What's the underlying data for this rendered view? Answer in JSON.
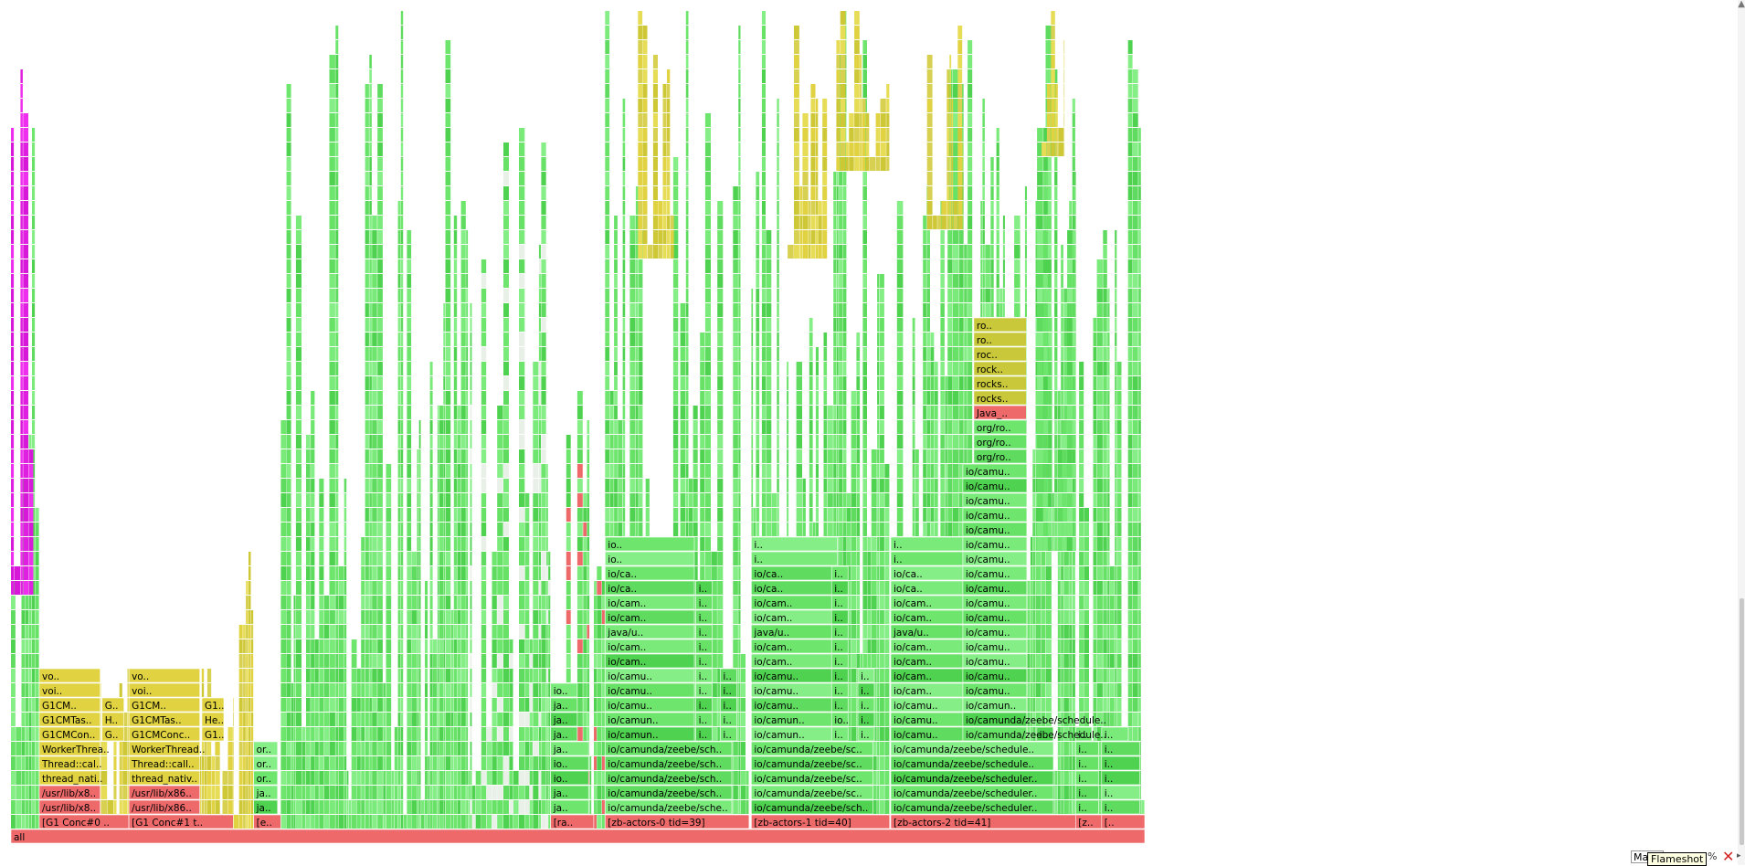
{
  "chart_data": {
    "type": "flamegraph",
    "root_label": "all",
    "x_unit": "fraction of samples",
    "colors": {
      "red": "#ee6a6a",
      "green": "#6ee66e",
      "green_mid": "#4fd24f",
      "yellow": "#e0d240",
      "olive": "#c8c83a",
      "magenta": "#e020e0",
      "frame_border": "#ffffff",
      "match": "#e020e0"
    },
    "threads": [
      {
        "label": "[G1 Conc#0 ..",
        "start": 0.025,
        "end": 0.104,
        "stack": [
          "/usr/lib/x8..",
          "/usr/lib/x8..",
          "thread_nati..",
          "Thread::cal..",
          "WorkerThrea..",
          "G1CMCon..",
          "G1CMTas..",
          "G1CM..",
          "voi..",
          "vo.."
        ]
      },
      {
        "label": "[G1 Conc#1 t..",
        "start": 0.104,
        "end": 0.196,
        "stack": [
          "/usr/lib/x86..",
          "/usr/lib/x86..",
          "thread_nativ..",
          "Thread::call..",
          "WorkerThread..",
          "G1CMConc..",
          "G1CMTas..",
          "G1CM..",
          "voi..",
          "vo.."
        ]
      },
      {
        "label": "[e..",
        "start": 0.214,
        "end": 0.238,
        "stack": [
          "ja..",
          "ja..",
          "or..",
          "or..",
          "or.."
        ]
      },
      {
        "label": "[ra..",
        "start": 0.476,
        "end": 0.514,
        "stack": [
          "ja..",
          "ja..",
          "io..",
          "io..",
          "ja..",
          "ja..",
          "ja..",
          "ja..",
          "io.."
        ]
      },
      {
        "label": "[zb-actors-0 tid=39]",
        "start": 0.524,
        "end": 0.651,
        "stack": [
          "io/camunda/zeebe/sche..",
          "io/camunda/zeebe/sch..",
          "io/camunda/zeebe/sch..",
          "io/camunda/zeebe/sch..",
          "io/camunda/zeebe/sch..",
          "io/camun..",
          "io/camun..",
          "io/camu..",
          "io/camu..",
          "io/camu..",
          "io/cam..",
          "io/cam..",
          "java/u..",
          "io/cam..",
          "io/cam..",
          "io/ca..",
          "io/ca..",
          "io..",
          "io.."
        ]
      },
      {
        "label": "[zb-actors-1 tid=40]",
        "start": 0.653,
        "end": 0.775,
        "stack": [
          "io/camunda/zeebe/sch..",
          "io/camunda/zeebe/sc..",
          "io/camunda/zeebe/sc..",
          "io/camunda/zeebe/sc..",
          "io/camunda/zeebe/sc..",
          "io/camun..",
          "io/camun..",
          "io/camu..",
          "io/camu..",
          "io/camu..",
          "io/cam..",
          "io/cam..",
          "java/u..",
          "io/cam..",
          "io/cam..",
          "io/ca..",
          "io/ca..",
          "i..",
          "i.."
        ]
      },
      {
        "label": "[zb-actors-2 tid=41]",
        "start": 0.776,
        "end": 0.939,
        "stack": [
          "io/camunda/zeebe/scheduler..",
          "io/camunda/zeebe/scheduler..",
          "io/camunda/zeebe/scheduler..",
          "io/camunda/zeebe/schedule..",
          "io/camunda/zeebe/schedule..",
          "io/camu..",
          "io/camu..",
          "io/camu..",
          "io/cam..",
          "io/cam..",
          "io/cam..",
          "io/cam..",
          "java/u..",
          "io/cam..",
          "io/cam..",
          "io/ca..",
          "io/ca..",
          "i..",
          "i.."
        ]
      },
      {
        "label": "[z..",
        "start": 0.939,
        "end": 0.962,
        "stack": [
          "i..",
          "i..",
          "i..",
          "i..",
          "i..",
          "i.."
        ]
      },
      {
        "label": "[..",
        "start": 0.962,
        "end": 1.0,
        "stack": [
          "i..",
          "i..",
          "i..",
          "i..",
          "i..",
          "i.."
        ]
      }
    ],
    "side_towers": [
      {
        "thread": "[zb-actors-0 tid=39]",
        "labels": [
          "i..",
          "i..",
          "i..",
          "i..",
          "i..",
          "i..",
          "i..",
          "i..",
          "i..",
          "i..",
          "i.."
        ]
      },
      {
        "thread": "[zb-actors-0 tid=39]",
        "labels": [
          "i..",
          "i..",
          "i..",
          "i..",
          "i.."
        ]
      },
      {
        "thread": "[zb-actors-1 tid=40]",
        "labels": [
          "i..",
          "io..",
          "i..",
          "i..",
          "i..",
          "i..",
          "i..",
          "i..",
          "i..",
          "i..",
          "i..",
          "i.."
        ]
      },
      {
        "thread": "[zb-actors-1 tid=40]",
        "labels": [
          "i..",
          "i..",
          "i..",
          "i..",
          "i.."
        ]
      },
      {
        "thread": "[zb-actors-2 tid=41]",
        "labels": [
          "i..",
          "i.."
        ]
      },
      {
        "thread": "[zb-actors-2 tid=41]",
        "labels": [
          "i.."
        ]
      }
    ],
    "gc_side_labels": [
      {
        "thread": "[G1 Conc#0 ..",
        "labels": [
          "G..",
          "H..",
          "G.."
        ]
      },
      {
        "thread": "[G1 Conc#1 t..",
        "labels": [
          "G1..",
          "He..",
          "G1.."
        ]
      }
    ],
    "zb2_tower": {
      "thread": "[zb-actors-2 tid=41]",
      "labels": [
        "io/camunda/zeebe/schedule..",
        "io/camunda/zeebe/schedule..",
        "io/camun..",
        "io/camu..",
        "io/camu..",
        "io/camu..",
        "io/camu..",
        "io/camu..",
        "io/camu..",
        "io/camu..",
        "io/camu..",
        "io/camu..",
        "io/camu..",
        "io/camu..",
        "io/camu..",
        "io/camu..",
        "io/camu..",
        "io/camu..",
        "io/camu..",
        "org/ro..",
        "org/ro..",
        "org/ro..",
        "Java_..",
        "rocks..",
        "rocks..",
        "rock..",
        "roc..",
        "ro..",
        "ro.."
      ]
    }
  },
  "search": {
    "field_value": "Ma",
    "percent_label": "%",
    "tooltip": "Flameshot"
  }
}
